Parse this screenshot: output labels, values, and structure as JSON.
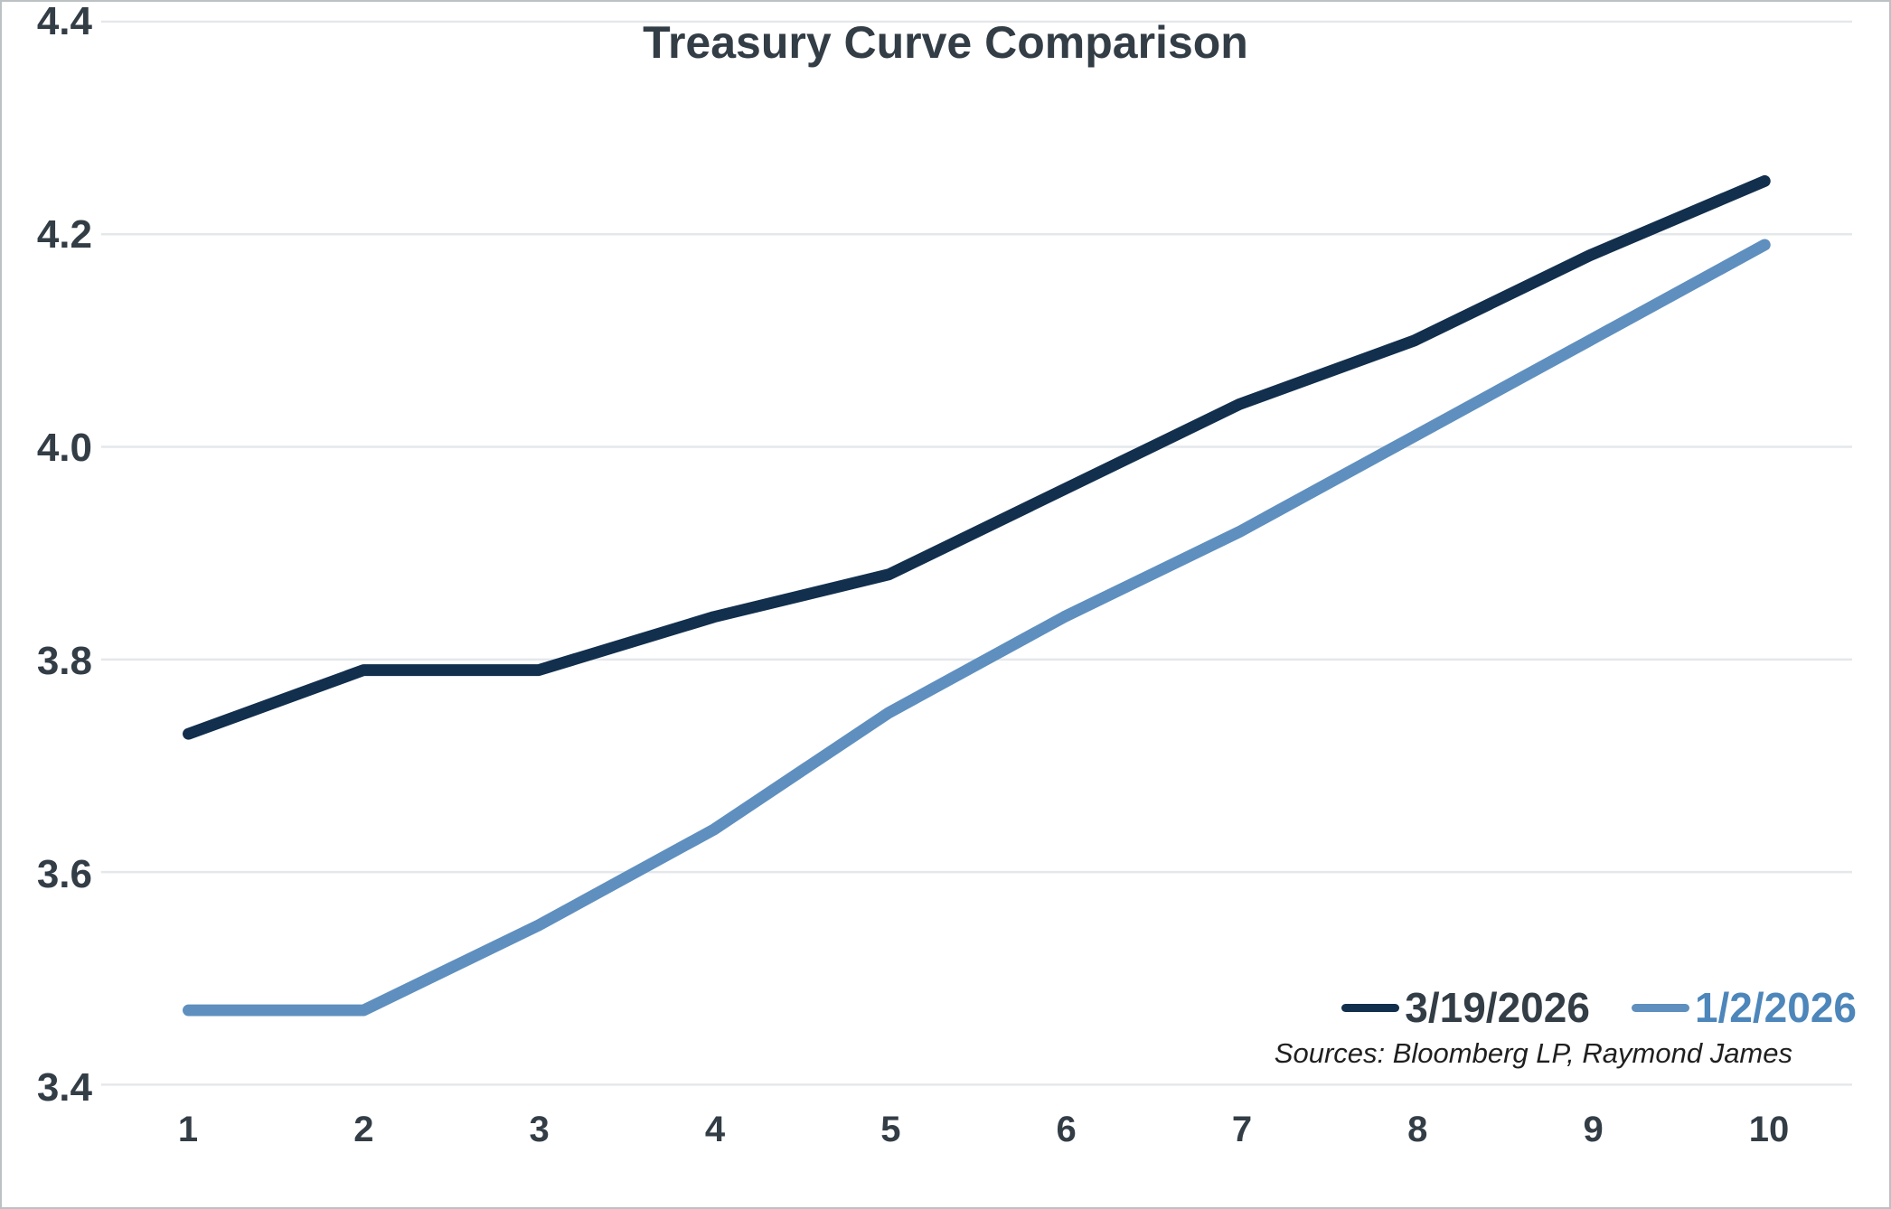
{
  "title": "Treasury Curve Comparison",
  "sources_note": "Sources: Bloomberg LP, Raymond James",
  "legend": [
    {
      "label": "3/19/2026",
      "swatch_color": "#122f4d",
      "text_color": "#333d46"
    },
    {
      "label": "1/2/2026",
      "swatch_color": "#5e8fbf",
      "text_color": "#4d86ba"
    }
  ],
  "colors": {
    "gridline": "#e4e8eb",
    "axis_text": "#333d46",
    "background": "#ffffff",
    "frame_border": "#bcc1c4",
    "series_dark": "#122f4d",
    "series_light": "#5e8fbf"
  },
  "chart_data": {
    "type": "line",
    "x": [
      1,
      2,
      3,
      4,
      5,
      6,
      7,
      8,
      9,
      10
    ],
    "xtick_labels": [
      "1",
      "2",
      "3",
      "4",
      "5",
      "6",
      "7",
      "8",
      "9",
      "10"
    ],
    "yticks": [
      3.4,
      3.6,
      3.8,
      4.0,
      4.2,
      4.4
    ],
    "ytick_labels": [
      "3.4",
      "3.6",
      "3.8",
      "4.0",
      "4.2",
      "4.4"
    ],
    "ylim": [
      3.4,
      4.4
    ],
    "series": [
      {
        "name": "3/19/2026",
        "color": "#122f4d",
        "values": [
          3.73,
          3.79,
          3.79,
          3.84,
          3.88,
          3.96,
          4.04,
          4.1,
          4.18,
          4.25
        ]
      },
      {
        "name": "1/2/2026",
        "color": "#5e8fbf",
        "values": [
          3.47,
          3.47,
          3.55,
          3.64,
          3.75,
          3.84,
          3.92,
          4.01,
          4.1,
          4.19
        ]
      }
    ],
    "title": "Treasury Curve Comparison",
    "xlabel": "",
    "ylabel": "",
    "grid": "horizontal",
    "legend_position": "inside-bottom-right"
  }
}
